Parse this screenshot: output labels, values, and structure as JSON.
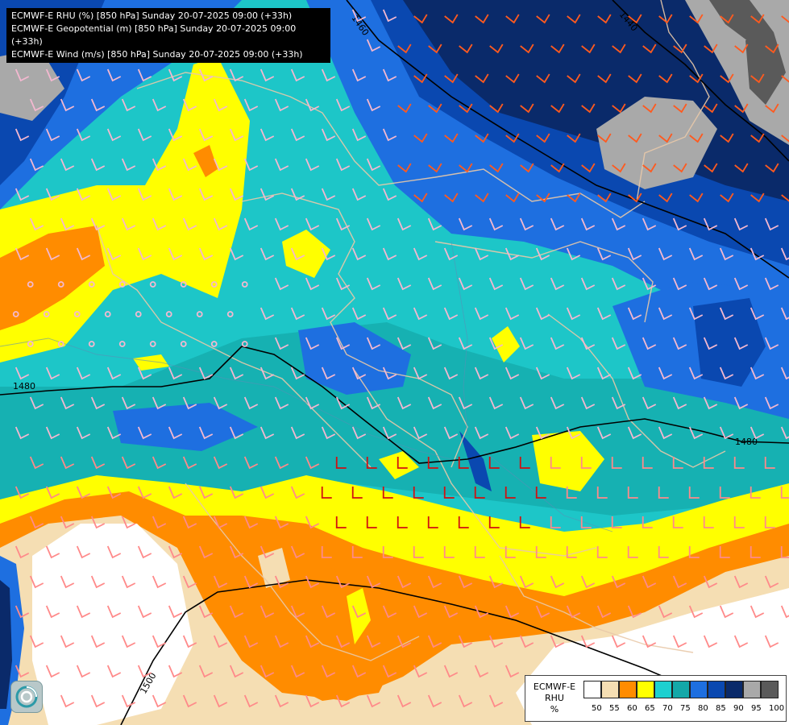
{
  "titles": [
    "ECMWF-E RHU (%) [850 hPa] Sunday 20-07-2025 09:00 (+33h)",
    "ECMWF-E Geopotential (m) [850 hPa] Sunday 20-07-2025 09:00 (+33h)",
    "ECMWF-E Wind (m/s) [850 hPa] Sunday 20-07-2025 09:00 (+33h)"
  ],
  "contour_labels": [
    "1460",
    "1440",
    "1480",
    "1480",
    "1500"
  ],
  "legend": {
    "title_lines": [
      "ECMWF-E",
      "RHU",
      "%"
    ],
    "ticks": [
      "50",
      "55",
      "60",
      "65",
      "70",
      "75",
      "80",
      "85",
      "90",
      "95",
      "100"
    ],
    "colors": [
      "#ffffff",
      "#f5deb3",
      "#ff8c00",
      "#ffff00",
      "#1dd0d0",
      "#14a8a8",
      "#1e6fe0",
      "#0a48b0",
      "#0a2a6a",
      "#a9a9a9",
      "#5a5a5a"
    ]
  },
  "logo_icon": "ecmwf-logo-icon"
}
